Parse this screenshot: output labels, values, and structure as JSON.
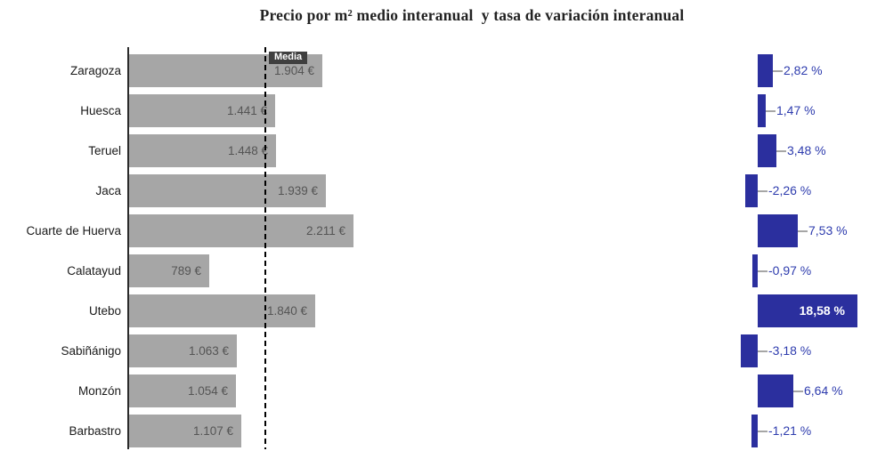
{
  "title": "Precio por m² medio interanual  y tasa de variación interanual",
  "media_label": "Media",
  "colors": {
    "price_bar": "#a6a6a6",
    "price_text": "#555555",
    "category_text": "#1a1a1a",
    "pct_bar": "#2b2f9e",
    "pct_text": "#2e3cae",
    "pct_text_inside": "#ffffff",
    "media_box_bg": "#3f3f3f",
    "axis": "#2b2b2b",
    "leader": "#a6a6a6"
  },
  "chart_data": {
    "type": "bar",
    "orientation": "horizontal",
    "title": "Precio por m² medio interanual  y tasa de variación interanual",
    "categories": [
      "Zaragoza",
      "Huesca",
      "Teruel",
      "Jaca",
      "Cuarte de Huerva",
      "Calatayud",
      "Utebo",
      "Sabiñánigo",
      "Monzón",
      "Barbastro"
    ],
    "series": [
      {
        "name": "Precio por m² medio interanual",
        "unit": "€",
        "values": [
          1904,
          1441,
          1448,
          1939,
          2211,
          789,
          1840,
          1063,
          1054,
          1107
        ],
        "labels": [
          "1.904 €",
          "1.441 €",
          "1.448 €",
          "1.939 €",
          "2.211 €",
          "789 €",
          "1.840 €",
          "1.063 €",
          "1.054 €",
          "1.107 €"
        ]
      },
      {
        "name": "Tasa de variación interanual",
        "unit": "%",
        "values": [
          2.82,
          1.47,
          3.48,
          -2.26,
          7.53,
          -0.97,
          18.58,
          -3.18,
          6.64,
          -1.21
        ],
        "labels": [
          "2,82 %",
          "1,47 %",
          "3,48 %",
          "-2,26 %",
          "7,53 %",
          "-0,97 %",
          "18,58 %",
          "-3,18 %",
          "6,64 %",
          "-1,21 %"
        ]
      }
    ],
    "media_line": {
      "label": "Media",
      "approx_value_eur": 1335
    },
    "price_xlim": [
      0,
      2430
    ],
    "pct_baseline": 0,
    "grid": false,
    "legend": "none",
    "value_labels": "shown"
  }
}
